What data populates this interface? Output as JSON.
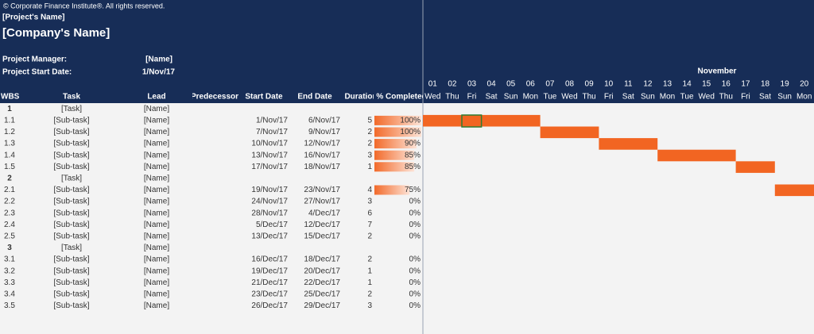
{
  "header": {
    "copyright": "© Corporate Finance Institute®. All rights reserved.",
    "project_name": "[Project's Name]",
    "company_name": "[Company's Name]",
    "manager_label": "Project Manager:",
    "manager": "[Name]",
    "start_label": "Project Start Date:",
    "start": "1/Nov/17"
  },
  "table": {
    "columns": [
      "WBS",
      "Task",
      "Lead",
      "Predecessor",
      "Start Date",
      "End Date",
      "Duration",
      "% Completed"
    ],
    "rows": [
      {
        "wbs": "1",
        "task": "[Task]",
        "lead": "[Name]"
      },
      {
        "wbs": "1.1",
        "task": "[Sub-task]",
        "lead": "[Name]",
        "start": "1/Nov/17",
        "end": "6/Nov/17",
        "duration": 5,
        "complete": {
          "value": 100,
          "label": "100%"
        }
      },
      {
        "wbs": "1.2",
        "task": "[Sub-task]",
        "lead": "[Name]",
        "start": "7/Nov/17",
        "end": "9/Nov/17",
        "duration": 2,
        "complete": {
          "value": 100,
          "label": "100%"
        }
      },
      {
        "wbs": "1.3",
        "task": "[Sub-task]",
        "lead": "[Name]",
        "start": "10/Nov/17",
        "end": "12/Nov/17",
        "duration": 2,
        "complete": {
          "value": 90,
          "label": "90%"
        }
      },
      {
        "wbs": "1.4",
        "task": "[Sub-task]",
        "lead": "[Name]",
        "start": "13/Nov/17",
        "end": "16/Nov/17",
        "duration": 3,
        "complete": {
          "value": 85,
          "label": "85%"
        }
      },
      {
        "wbs": "1.5",
        "task": "[Sub-task]",
        "lead": "[Name]",
        "start": "17/Nov/17",
        "end": "18/Nov/17",
        "duration": 1,
        "complete": {
          "value": 85,
          "label": "85%"
        }
      },
      {
        "wbs": "2",
        "task": "[Task]",
        "lead": "[Name]"
      },
      {
        "wbs": "2.1",
        "task": "[Sub-task]",
        "lead": "[Name]",
        "start": "19/Nov/17",
        "end": "23/Nov/17",
        "duration": 4,
        "complete": {
          "value": 75,
          "label": "75%"
        }
      },
      {
        "wbs": "2.2",
        "task": "[Sub-task]",
        "lead": "[Name]",
        "start": "24/Nov/17",
        "end": "27/Nov/17",
        "duration": 3,
        "complete": {
          "value": 0,
          "label": "0%"
        }
      },
      {
        "wbs": "2.3",
        "task": "[Sub-task]",
        "lead": "[Name]",
        "start": "28/Nov/17",
        "end": "4/Dec/17",
        "duration": 6,
        "complete": {
          "value": 0,
          "label": "0%"
        }
      },
      {
        "wbs": "2.4",
        "task": "[Sub-task]",
        "lead": "[Name]",
        "start": "5/Dec/17",
        "end": "12/Dec/17",
        "duration": 7,
        "complete": {
          "value": 0,
          "label": "0%"
        }
      },
      {
        "wbs": "2.5",
        "task": "[Sub-task]",
        "lead": "[Name]",
        "start": "13/Dec/17",
        "end": "15/Dec/17",
        "duration": 2,
        "complete": {
          "value": 0,
          "label": "0%"
        }
      },
      {
        "wbs": "3",
        "task": "[Task]",
        "lead": "[Name]"
      },
      {
        "wbs": "3.1",
        "task": "[Sub-task]",
        "lead": "[Name]",
        "start": "16/Dec/17",
        "end": "18/Dec/17",
        "duration": 2,
        "complete": {
          "value": 0,
          "label": "0%"
        }
      },
      {
        "wbs": "3.2",
        "task": "[Sub-task]",
        "lead": "[Name]",
        "start": "19/Dec/17",
        "end": "20/Dec/17",
        "duration": 1,
        "complete": {
          "value": 0,
          "label": "0%"
        }
      },
      {
        "wbs": "3.3",
        "task": "[Sub-task]",
        "lead": "[Name]",
        "start": "21/Dec/17",
        "end": "22/Dec/17",
        "duration": 1,
        "complete": {
          "value": 0,
          "label": "0%"
        }
      },
      {
        "wbs": "3.4",
        "task": "[Sub-task]",
        "lead": "[Name]",
        "start": "23/Dec/17",
        "end": "25/Dec/17",
        "duration": 2,
        "complete": {
          "value": 0,
          "label": "0%"
        }
      },
      {
        "wbs": "3.5",
        "task": "[Sub-task]",
        "lead": "[Name]",
        "start": "26/Dec/17",
        "end": "29/Dec/17",
        "duration": 3,
        "complete": {
          "value": 0,
          "label": "0%"
        }
      }
    ]
  },
  "timeline": {
    "month": "November",
    "days": [
      {
        "day": "01",
        "weekday": "Wed"
      },
      {
        "day": "02",
        "weekday": "Thu"
      },
      {
        "day": "03",
        "weekday": "Fri"
      },
      {
        "day": "04",
        "weekday": "Sat"
      },
      {
        "day": "05",
        "weekday": "Sun"
      },
      {
        "day": "06",
        "weekday": "Mon"
      },
      {
        "day": "07",
        "weekday": "Tue"
      },
      {
        "day": "08",
        "weekday": "Wed"
      },
      {
        "day": "09",
        "weekday": "Thu"
      },
      {
        "day": "10",
        "weekday": "Fri"
      },
      {
        "day": "11",
        "weekday": "Sat"
      },
      {
        "day": "12",
        "weekday": "Sun"
      },
      {
        "day": "13",
        "weekday": "Mon"
      },
      {
        "day": "14",
        "weekday": "Tue"
      },
      {
        "day": "15",
        "weekday": "Wed"
      },
      {
        "day": "16",
        "weekday": "Thu"
      },
      {
        "day": "17",
        "weekday": "Fri"
      },
      {
        "day": "18",
        "weekday": "Sat"
      },
      {
        "day": "19",
        "weekday": "Sun"
      },
      {
        "day": "20",
        "weekday": "Mon"
      }
    ]
  }
}
